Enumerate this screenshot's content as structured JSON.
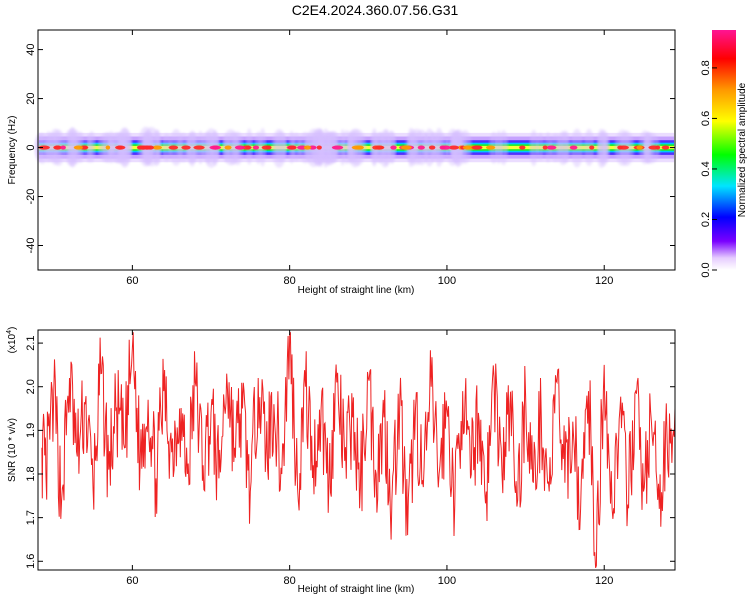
{
  "title": "C2E4.2024.360.07.56.G31",
  "colors": {
    "snr_line": "#ee2222",
    "spectrogram_background": "#ffffff",
    "frame": "#000000"
  },
  "chart_data": [
    {
      "type": "heatmap",
      "xlabel": "Height of straight line (km)",
      "ylabel": "Frequency (Hz)",
      "xlim": [
        48,
        129
      ],
      "ylim": [
        -50,
        48
      ],
      "xticks": [
        60,
        80,
        100,
        120
      ],
      "yticks": [
        -40,
        -20,
        0,
        20,
        40
      ],
      "xtick_labels": [
        "60",
        "80",
        "100",
        "120"
      ],
      "ytick_labels": [
        "-40",
        "-20",
        "0",
        "20",
        "40"
      ],
      "band": {
        "description": "energy concentrated near 0 Hz along full height range",
        "center_hz": 0,
        "half_width_hz": 3
      },
      "colorbar": {
        "label": "Normalized spectral amplitude",
        "range": [
          0,
          0.95
        ],
        "ticks": [
          0.0,
          0.2,
          0.4,
          0.6,
          0.8
        ],
        "tick_labels": [
          "0.0",
          "0.2",
          "0.4",
          "0.6",
          "0.8"
        ],
        "colormap": "rainbow (white-violet-blue-cyan-green-yellow-orange-red-magenta)"
      }
    },
    {
      "type": "line",
      "xlabel": "Height of straight line (km)",
      "ylabel": "SNR (10 * v/v)",
      "y_multiplier_label": "(x10",
      "y_multiplier_exp": "4",
      "y_multiplier_close": ")",
      "xlim": [
        48,
        129
      ],
      "ylim": [
        1.58,
        2.13
      ],
      "xticks": [
        60,
        80,
        100,
        120
      ],
      "yticks": [
        1.6,
        1.7,
        1.8,
        1.9,
        2.0,
        2.1
      ],
      "xtick_labels": [
        "60",
        "80",
        "100",
        "120"
      ],
      "ytick_labels": [
        "1.6",
        "1.7",
        "1.8",
        "1.9",
        "2.0",
        "2.1"
      ],
      "series": [
        {
          "x": [
            48.5,
            49.0,
            50.0,
            51.0,
            52.0,
            53.0,
            54.0,
            55.0,
            56.0,
            57.0,
            58.0,
            59.0,
            60.0,
            61.0,
            62.0,
            63.0,
            64.0,
            65.0,
            66.0,
            67.0,
            68.0,
            69.0,
            70.0,
            71.0,
            72.0,
            73.0,
            74.0,
            75.0,
            76.0,
            77.0,
            78.0,
            79.0,
            80.0,
            81.0,
            82.0,
            83.0,
            84.0,
            85.0,
            86.0,
            87.0,
            88.0,
            89.0,
            90.0,
            91.0,
            92.0,
            93.0,
            94.0,
            95.0,
            96.0,
            97.0,
            98.0,
            99.0,
            100.0,
            101.0,
            102.0,
            103.0,
            104.0,
            105.0,
            106.0,
            107.0,
            108.0,
            109.0,
            110.0,
            111.0,
            112.0,
            113.0,
            114.0,
            115.0,
            116.0,
            117.0,
            118.0,
            119.0,
            120.0,
            121.0,
            122.0,
            123.0,
            124.0,
            125.0,
            126.0,
            127.0,
            128.0,
            129.0
          ],
          "y": [
            1.86,
            1.8,
            1.98,
            1.74,
            2.02,
            1.84,
            1.96,
            1.77,
            2.03,
            1.81,
            1.95,
            1.86,
            2.09,
            1.83,
            1.97,
            1.79,
            1.99,
            1.85,
            1.95,
            1.8,
            2.01,
            1.82,
            1.94,
            1.79,
            2.03,
            1.86,
            1.95,
            1.76,
            2.02,
            1.85,
            1.96,
            1.8,
            2.12,
            1.77,
            2.0,
            1.82,
            1.95,
            1.78,
            2.01,
            1.83,
            1.93,
            1.77,
            2.02,
            1.8,
            1.93,
            1.74,
            1.97,
            1.66,
            1.95,
            1.77,
            2.0,
            1.8,
            1.95,
            1.73,
            1.99,
            1.79,
            1.94,
            1.76,
            2.02,
            1.8,
            1.96,
            1.74,
            1.98,
            1.78,
            1.93,
            1.76,
            2.01,
            1.78,
            1.92,
            1.72,
            1.99,
            1.59,
            2.05,
            1.72,
            1.95,
            1.73,
            1.99,
            1.76,
            1.92,
            1.72,
            1.88,
            1.95
          ]
        }
      ]
    }
  ]
}
